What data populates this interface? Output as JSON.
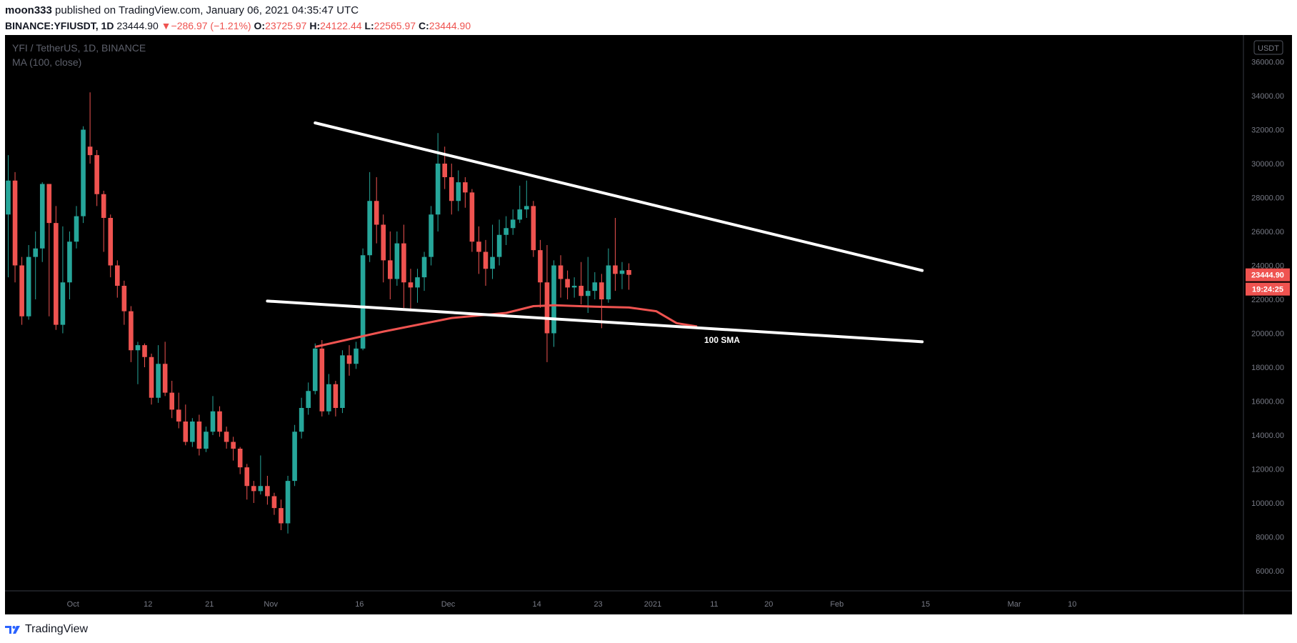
{
  "header": {
    "author": "moon333",
    "published": "published on TradingView.com, January 06, 2021 04:35:47 UTC",
    "symbol": "BINANCE:YFIUSDT, 1D",
    "last": "23444.90",
    "change_arrow": "▼",
    "change": "−286.97 (−1.21%)",
    "o_label": "O:",
    "o": "23725.97",
    "h_label": "H:",
    "h": "24122.44",
    "l_label": "L:",
    "l": "22565.97",
    "c_label": "C:",
    "c": "23444.90"
  },
  "footer": {
    "brand": "TradingView",
    "logo_icon": "tradingview-logo-icon"
  },
  "colors": {
    "background": "#000000",
    "up": "#26a69a",
    "down": "#ef5350",
    "ma": "#ef5350",
    "trendline": "#ffffff",
    "frame": "#ffffff"
  },
  "chart_data": {
    "type": "candlestick",
    "title": "YFI / TetherUS, 1D, BINANCE",
    "indicator_label": "MA (100, close)",
    "currency_badge": "USDT",
    "x_ticks": [
      "Oct",
      "12",
      "21",
      "Nov",
      "16",
      "Dec",
      "14",
      "23",
      "2021",
      "11",
      "20",
      "Feb",
      "15",
      "Mar",
      "10"
    ],
    "y_ticks": [
      "6000.00",
      "8000.00",
      "10000.00",
      "12000.00",
      "14000.00",
      "16000.00",
      "18000.00",
      "20000.00",
      "22000.00",
      "24000.00",
      "26000.00",
      "28000.00",
      "30000.00",
      "32000.00",
      "34000.00",
      "36000.00"
    ],
    "ylim": [
      4500,
      37500
    ],
    "price_label": "23444.90",
    "countdown_label": "19:24:25",
    "annotation": "100 SMA",
    "candles": [
      [
        27000,
        29000,
        30500,
        23300
      ],
      [
        29000,
        24000,
        29500,
        23000
      ],
      [
        24000,
        21000,
        24500,
        20500
      ],
      [
        21000,
        24500,
        25200,
        20800
      ],
      [
        24500,
        25000,
        26000,
        22000
      ],
      [
        25000,
        28800,
        28900,
        24200
      ],
      [
        28800,
        26500,
        27200,
        21000
      ],
      [
        26500,
        20500,
        27500,
        20200
      ],
      [
        20500,
        23000,
        26300,
        20000
      ],
      [
        23000,
        25400,
        26000,
        22000
      ],
      [
        25400,
        26900,
        27500,
        25000
      ],
      [
        26900,
        32000,
        32200,
        26500
      ],
      [
        31000,
        30500,
        34200,
        30000
      ],
      [
        30500,
        28200,
        30800,
        27500
      ],
      [
        28200,
        26800,
        28400,
        24800
      ],
      [
        26800,
        24000,
        27000,
        23300
      ],
      [
        24000,
        22800,
        24300,
        22100
      ],
      [
        22800,
        21300,
        23100,
        20500
      ],
      [
        21300,
        19000,
        21600,
        18300
      ],
      [
        19000,
        19300,
        19500,
        17000
      ],
      [
        19300,
        18600,
        19400,
        18000
      ],
      [
        18600,
        16200,
        18800,
        15800
      ],
      [
        16200,
        18200,
        19300,
        15900
      ],
      [
        18200,
        16500,
        19500,
        16300
      ],
      [
        16500,
        15500,
        17200,
        15000
      ],
      [
        15500,
        14800,
        16500,
        14400
      ],
      [
        14800,
        13600,
        15800,
        13400
      ],
      [
        13600,
        14800,
        15000,
        13300
      ],
      [
        14800,
        13200,
        15200,
        12800
      ],
      [
        13200,
        14200,
        14500,
        13000
      ],
      [
        14200,
        15400,
        16300,
        14000
      ],
      [
        15400,
        14200,
        15700,
        13900
      ],
      [
        14200,
        13600,
        14500,
        13200
      ],
      [
        13600,
        13200,
        13900,
        12500
      ],
      [
        13200,
        12100,
        13300,
        11700
      ],
      [
        12100,
        11000,
        12300,
        10200
      ],
      [
        11000,
        10700,
        11300,
        10000
      ],
      [
        10700,
        11000,
        12800,
        10500
      ],
      [
        11000,
        10400,
        11600,
        9900
      ],
      [
        10400,
        9700,
        10600,
        9300
      ],
      [
        9700,
        8800,
        10200,
        8400
      ],
      [
        8800,
        11300,
        11600,
        8200
      ],
      [
        11300,
        14200,
        14600,
        11000
      ],
      [
        14200,
        15600,
        16200,
        13800
      ],
      [
        15600,
        16600,
        17100,
        15200
      ],
      [
        16600,
        19100,
        19400,
        16400
      ],
      [
        19100,
        15400,
        19600,
        15100
      ],
      [
        15400,
        17000,
        17600,
        15200
      ],
      [
        17000,
        15600,
        17200,
        15100
      ],
      [
        15600,
        18700,
        19000,
        15300
      ],
      [
        18700,
        18200,
        19300,
        17500
      ],
      [
        18200,
        19100,
        19500,
        17900
      ],
      [
        19100,
        24600,
        25000,
        19000
      ],
      [
        24600,
        27800,
        29500,
        24200
      ],
      [
        27800,
        26400,
        29200,
        25300
      ],
      [
        26400,
        24300,
        27000,
        23000
      ],
      [
        24300,
        23200,
        26000,
        22000
      ],
      [
        23200,
        25300,
        26000,
        22800
      ],
      [
        25300,
        23000,
        26400,
        21500
      ],
      [
        23000,
        22700,
        23800,
        21300
      ],
      [
        22700,
        23300,
        23800,
        21800
      ],
      [
        23300,
        24500,
        24800,
        22500
      ],
      [
        24500,
        27000,
        27500,
        24000
      ],
      [
        27000,
        30000,
        31800,
        26000
      ],
      [
        30000,
        29200,
        31000,
        28500
      ],
      [
        29200,
        27800,
        30000,
        27000
      ],
      [
        27800,
        28900,
        29600,
        27200
      ],
      [
        28900,
        28300,
        29200,
        27400
      ],
      [
        28300,
        25400,
        28500,
        24800
      ],
      [
        25400,
        24800,
        26300,
        23500
      ],
      [
        24800,
        23800,
        25500,
        22800
      ],
      [
        23800,
        24500,
        26400,
        23200
      ],
      [
        24500,
        25800,
        26700,
        24000
      ],
      [
        25800,
        26200,
        26900,
        25200
      ],
      [
        26200,
        26700,
        27300,
        25800
      ],
      [
        26700,
        27300,
        28700,
        26500
      ],
      [
        27300,
        27500,
        29000,
        26800
      ],
      [
        27500,
        24900,
        27800,
        24500
      ],
      [
        24900,
        23000,
        25500,
        21500
      ],
      [
        23000,
        20000,
        25200,
        18300
      ],
      [
        20000,
        24000,
        24300,
        19200
      ],
      [
        24000,
        23200,
        24600,
        22100
      ],
      [
        23200,
        22700,
        23700,
        22000
      ],
      [
        22700,
        22800,
        23300,
        22100
      ],
      [
        22800,
        22200,
        24200,
        21700
      ],
      [
        22200,
        22500,
        24500,
        21200
      ],
      [
        22500,
        23000,
        23600,
        22000
      ],
      [
        23000,
        22000,
        23500,
        20300
      ],
      [
        22000,
        24000,
        25000,
        21800
      ],
      [
        24000,
        23500,
        26800,
        22500
      ],
      [
        23500,
        23700,
        24200,
        22600
      ],
      [
        23725.97,
        23444.9,
        24122.44,
        22565.97
      ]
    ],
    "ma100": [
      [
        45,
        19200
      ],
      [
        55,
        20100
      ],
      [
        65,
        20900
      ],
      [
        73,
        21200
      ],
      [
        77,
        21600
      ],
      [
        80,
        21650
      ],
      [
        86,
        21570
      ],
      [
        91,
        21520
      ],
      [
        95,
        21300
      ],
      [
        98,
        20600
      ],
      [
        101,
        20400
      ]
    ],
    "trendlines": [
      {
        "name": "upper-resistance",
        "from": [
          45,
          32400
        ],
        "to": [
          134,
          23700
        ]
      },
      {
        "name": "lower-support",
        "from": [
          38,
          21900
        ],
        "to": [
          134,
          19500
        ]
      }
    ]
  }
}
